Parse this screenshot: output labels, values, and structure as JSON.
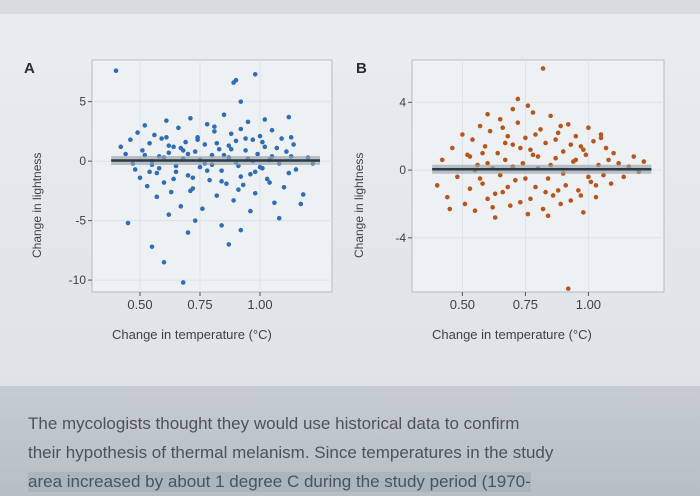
{
  "chart_data": [
    {
      "type": "scatter",
      "panel": "A",
      "xlabel": "Change in temperature (°C)",
      "ylabel": "Change in lightness",
      "xlim": [
        0.3,
        1.3
      ],
      "ylim": [
        -11,
        8.5
      ],
      "xticks": [
        "0.50",
        "0.75",
        "1.00"
      ],
      "xtick_values": [
        0.5,
        0.75,
        1.0
      ],
      "yticks": [
        "5",
        "0",
        "-5",
        "-10"
      ],
      "ytick_values": [
        5,
        0,
        -5,
        -10
      ],
      "color": "#2f6db5",
      "trend_line": {
        "intercept": 0.05,
        "slope": 0.0,
        "color": "#2b3a45",
        "band_color": "#9aa3aa"
      },
      "points": [
        [
          0.4,
          7.6
        ],
        [
          0.9,
          6.8
        ],
        [
          0.98,
          7.3
        ],
        [
          0.89,
          6.6
        ],
        [
          0.92,
          5.0
        ],
        [
          1.12,
          3.7
        ],
        [
          1.13,
          2.0
        ],
        [
          0.42,
          1.2
        ],
        [
          0.44,
          0.6
        ],
        [
          0.46,
          1.8
        ],
        [
          0.48,
          -0.7
        ],
        [
          0.49,
          2.4
        ],
        [
          0.5,
          -1.4
        ],
        [
          0.51,
          0.9
        ],
        [
          0.52,
          3.0
        ],
        [
          0.53,
          -2.1
        ],
        [
          0.54,
          1.5
        ],
        [
          0.55,
          -0.3
        ],
        [
          0.56,
          2.2
        ],
        [
          0.57,
          -3.0
        ],
        [
          0.58,
          0.4
        ],
        [
          0.59,
          1.9
        ],
        [
          0.6,
          -1.8
        ],
        [
          0.61,
          3.4
        ],
        [
          0.62,
          0.7
        ],
        [
          0.63,
          -2.6
        ],
        [
          0.64,
          1.2
        ],
        [
          0.65,
          -0.9
        ],
        [
          0.66,
          2.8
        ],
        [
          0.67,
          -3.8
        ],
        [
          0.68,
          0.2
        ],
        [
          0.69,
          1.6
        ],
        [
          0.7,
          -1.2
        ],
        [
          0.71,
          3.6
        ],
        [
          0.72,
          -2.3
        ],
        [
          0.73,
          0.8
        ],
        [
          0.74,
          2.0
        ],
        [
          0.75,
          -0.5
        ],
        [
          0.76,
          -4.0
        ],
        [
          0.77,
          1.4
        ],
        [
          0.78,
          3.1
        ],
        [
          0.79,
          -1.6
        ],
        [
          0.8,
          0.5
        ],
        [
          0.81,
          2.5
        ],
        [
          0.82,
          -2.9
        ],
        [
          0.83,
          1.0
        ],
        [
          0.84,
          -0.8
        ],
        [
          0.85,
          3.9
        ],
        [
          0.86,
          -1.9
        ],
        [
          0.87,
          0.3
        ],
        [
          0.88,
          2.3
        ],
        [
          0.89,
          -3.3
        ],
        [
          0.9,
          1.7
        ],
        [
          0.91,
          -0.4
        ],
        [
          0.92,
          2.7
        ],
        [
          0.93,
          -2.0
        ],
        [
          0.94,
          0.9
        ],
        [
          0.95,
          3.3
        ],
        [
          0.96,
          -1.1
        ],
        [
          0.97,
          1.8
        ],
        [
          0.98,
          -2.7
        ],
        [
          0.99,
          0.6
        ],
        [
          1.0,
          2.1
        ],
        [
          1.01,
          -0.6
        ],
        [
          1.02,
          3.5
        ],
        [
          1.03,
          -1.5
        ],
        [
          1.04,
          0.1
        ],
        [
          1.05,
          2.6
        ],
        [
          1.06,
          -3.5
        ],
        [
          1.07,
          1.1
        ],
        [
          1.08,
          -0.2
        ],
        [
          1.09,
          1.9
        ],
        [
          1.1,
          -2.2
        ],
        [
          1.11,
          0.8
        ],
        [
          1.12,
          -1.0
        ],
        [
          1.13,
          0.4
        ],
        [
          1.15,
          -0.7
        ],
        [
          1.17,
          -3.6
        ],
        [
          1.18,
          -2.8
        ],
        [
          1.2,
          0.3
        ],
        [
          1.22,
          -0.2
        ],
        [
          0.55,
          0.0
        ],
        [
          0.6,
          0.3
        ],
        [
          0.65,
          -0.4
        ],
        [
          0.7,
          0.6
        ],
        [
          0.75,
          0.1
        ],
        [
          0.8,
          -0.3
        ],
        [
          0.85,
          0.5
        ],
        [
          0.9,
          -0.1
        ],
        [
          0.95,
          0.2
        ],
        [
          1.0,
          -0.5
        ],
        [
          1.05,
          0.4
        ],
        [
          0.58,
          -0.6
        ],
        [
          0.68,
          0.9
        ],
        [
          0.78,
          -0.8
        ],
        [
          0.88,
          1.0
        ],
        [
          0.98,
          -0.9
        ],
        [
          0.62,
          1.3
        ],
        [
          0.72,
          -1.4
        ],
        [
          0.82,
          1.5
        ],
        [
          0.92,
          -1.3
        ],
        [
          1.02,
          1.2
        ],
        [
          0.57,
          -1.0
        ],
        [
          0.67,
          1.1
        ],
        [
          0.77,
          -0.2
        ],
        [
          0.87,
          1.3
        ],
        [
          0.97,
          0.0
        ],
        [
          0.47,
          -0.2
        ],
        [
          0.52,
          0.5
        ],
        [
          0.54,
          -0.9
        ],
        [
          0.64,
          -1.5
        ],
        [
          0.74,
          1.8
        ],
        [
          0.84,
          -1.7
        ],
        [
          0.94,
          1.9
        ],
        [
          1.04,
          -1.8
        ],
        [
          1.14,
          1.4
        ],
        [
          0.61,
          2.0
        ],
        [
          0.71,
          -2.5
        ],
        [
          0.81,
          2.9
        ],
        [
          0.91,
          -2.4
        ],
        [
          1.01,
          1.6
        ],
        [
          0.62,
          -4.5
        ],
        [
          0.7,
          -6.0
        ],
        [
          0.55,
          -7.2
        ],
        [
          0.73,
          -5.0
        ],
        [
          0.84,
          -5.4
        ],
        [
          0.96,
          -4.2
        ],
        [
          0.87,
          -7.0
        ],
        [
          0.6,
          -8.5
        ],
        [
          0.68,
          -10.2
        ],
        [
          0.45,
          -5.2
        ],
        [
          1.08,
          -4.8
        ],
        [
          0.92,
          -5.8
        ]
      ]
    },
    {
      "type": "scatter",
      "panel": "B",
      "xlabel": "Change in temperature (°C)",
      "ylabel": "Change in lightness",
      "xlim": [
        0.3,
        1.3
      ],
      "ylim": [
        -7.2,
        6.5
      ],
      "xticks": [
        "0.50",
        "0.75",
        "1.00"
      ],
      "xtick_values": [
        0.5,
        0.75,
        1.0
      ],
      "yticks": [
        "4",
        "0",
        "-4"
      ],
      "ytick_values": [
        4,
        0,
        -4
      ],
      "color": "#b8541c",
      "trend_line": {
        "intercept": 0.05,
        "slope": 0.0,
        "color": "#2b3a45",
        "band_color": "#9aa3aa"
      },
      "points": [
        [
          0.82,
          6.0
        ],
        [
          0.92,
          -7.0
        ],
        [
          0.4,
          -0.9
        ],
        [
          0.42,
          0.6
        ],
        [
          0.44,
          -1.6
        ],
        [
          0.46,
          1.3
        ],
        [
          0.48,
          -0.4
        ],
        [
          0.5,
          2.1
        ],
        [
          0.51,
          -2.0
        ],
        [
          0.52,
          0.9
        ],
        [
          0.53,
          -1.1
        ],
        [
          0.54,
          1.8
        ],
        [
          0.55,
          -2.4
        ],
        [
          0.56,
          0.3
        ],
        [
          0.57,
          2.6
        ],
        [
          0.58,
          -0.8
        ],
        [
          0.59,
          1.4
        ],
        [
          0.6,
          -1.7
        ],
        [
          0.61,
          2.3
        ],
        [
          0.62,
          0.1
        ],
        [
          0.63,
          -2.8
        ],
        [
          0.64,
          1.0
        ],
        [
          0.65,
          3.0
        ],
        [
          0.66,
          -1.3
        ],
        [
          0.67,
          0.6
        ],
        [
          0.68,
          2.0
        ],
        [
          0.69,
          -2.1
        ],
        [
          0.7,
          1.5
        ],
        [
          0.71,
          -0.6
        ],
        [
          0.72,
          2.8
        ],
        [
          0.73,
          -1.9
        ],
        [
          0.74,
          0.4
        ],
        [
          0.75,
          1.9
        ],
        [
          0.76,
          -2.6
        ],
        [
          0.77,
          1.2
        ],
        [
          0.78,
          3.4
        ],
        [
          0.79,
          -1.0
        ],
        [
          0.8,
          0.8
        ],
        [
          0.81,
          2.4
        ],
        [
          0.82,
          -2.3
        ],
        [
          0.83,
          1.6
        ],
        [
          0.84,
          -0.5
        ],
        [
          0.85,
          3.2
        ],
        [
          0.86,
          -1.5
        ],
        [
          0.87,
          0.7
        ],
        [
          0.88,
          2.2
        ],
        [
          0.89,
          -2.0
        ],
        [
          0.9,
          1.1
        ],
        [
          0.91,
          -0.9
        ],
        [
          0.92,
          2.7
        ],
        [
          0.93,
          -1.8
        ],
        [
          0.94,
          0.5
        ],
        [
          0.95,
          2.0
        ],
        [
          0.96,
          -1.2
        ],
        [
          0.97,
          1.4
        ],
        [
          0.98,
          -2.5
        ],
        [
          0.99,
          0.9
        ],
        [
          1.0,
          2.5
        ],
        [
          1.01,
          -0.7
        ],
        [
          1.02,
          1.7
        ],
        [
          1.03,
          -1.6
        ],
        [
          1.04,
          0.3
        ],
        [
          1.05,
          2.1
        ],
        [
          1.06,
          -0.3
        ],
        [
          1.07,
          1.3
        ],
        [
          1.08,
          0.6
        ],
        [
          1.09,
          -0.8
        ],
        [
          1.1,
          1.0
        ],
        [
          1.12,
          0.4
        ],
        [
          1.14,
          -0.4
        ],
        [
          1.16,
          0.2
        ],
        [
          1.18,
          0.8
        ],
        [
          1.2,
          -0.1
        ],
        [
          1.22,
          0.5
        ],
        [
          0.76,
          3.8
        ],
        [
          0.72,
          4.2
        ],
        [
          0.7,
          3.6
        ],
        [
          0.6,
          3.3
        ],
        [
          0.45,
          -2.3
        ],
        [
          0.55,
          0.0
        ],
        [
          0.6,
          0.4
        ],
        [
          0.65,
          -0.3
        ],
        [
          0.7,
          0.2
        ],
        [
          0.75,
          -0.5
        ],
        [
          0.8,
          0.1
        ],
        [
          0.85,
          0.3
        ],
        [
          0.9,
          -0.2
        ],
        [
          0.95,
          0.6
        ],
        [
          1.0,
          -0.4
        ],
        [
          0.58,
          1.0
        ],
        [
          0.68,
          -1.0
        ],
        [
          0.78,
          0.9
        ],
        [
          0.88,
          -1.2
        ],
        [
          0.98,
          1.2
        ],
        [
          0.63,
          -1.4
        ],
        [
          0.73,
          1.3
        ],
        [
          0.83,
          -1.3
        ],
        [
          0.93,
          1.5
        ],
        [
          1.03,
          -0.9
        ],
        [
          0.57,
          -0.5
        ],
        [
          0.67,
          1.6
        ],
        [
          0.77,
          -1.7
        ],
        [
          0.87,
          1.8
        ],
        [
          0.97,
          -1.5
        ],
        [
          0.53,
          0.8
        ],
        [
          0.62,
          -2.2
        ],
        [
          0.79,
          2.1
        ],
        [
          0.89,
          2.6
        ],
        [
          1.05,
          1.9
        ],
        [
          0.66,
          2.5
        ],
        [
          0.84,
          -2.7
        ]
      ]
    }
  ],
  "caption": {
    "line1": "The mycologists thought they would use historical data to confirm",
    "line2": "their hypothesis of thermal melanism. Since temperatures in the study",
    "line3": "area increased by about 1 degree C during the study period (1970-"
  }
}
